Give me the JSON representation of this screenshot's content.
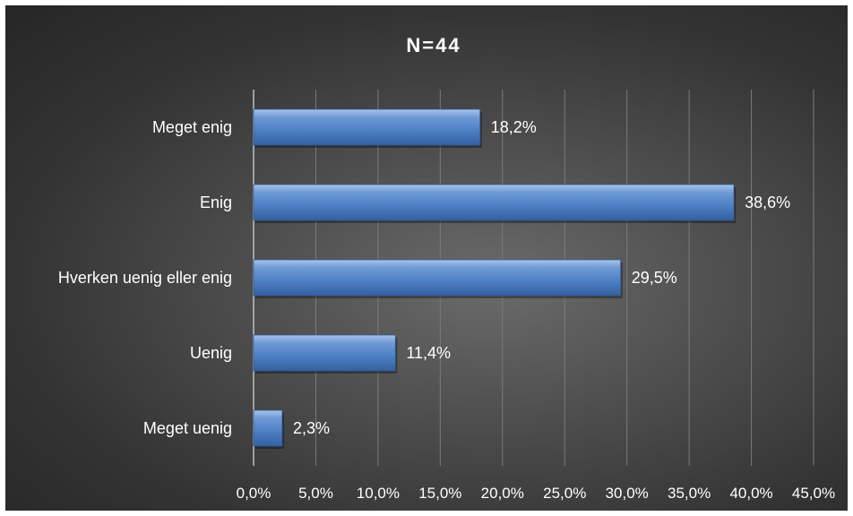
{
  "chart_data": {
    "type": "bar",
    "orientation": "horizontal",
    "title": "N=44",
    "categories": [
      "Meget enig",
      "Enig",
      "Hverken uenig eller enig",
      "Uenig",
      "Meget uenig"
    ],
    "values": [
      18.2,
      38.6,
      29.5,
      11.4,
      2.3
    ],
    "data_labels": [
      "18,2%",
      "38,6%",
      "29,5%",
      "11,4%",
      "2,3%"
    ],
    "xlim": [
      0,
      45
    ],
    "x_ticks": [
      0,
      5,
      10,
      15,
      20,
      25,
      30,
      35,
      40,
      45
    ],
    "x_tick_labels": [
      "0,0%",
      "5,0%",
      "10,0%",
      "15,0%",
      "20,0%",
      "25,0%",
      "30,0%",
      "35,0%",
      "40,0%",
      "45,0%"
    ],
    "grid": "vertical",
    "legend": "none",
    "colors": {
      "bar": "#4f81bd",
      "text": "#ffffff",
      "grid": "#7a7a7a"
    }
  }
}
